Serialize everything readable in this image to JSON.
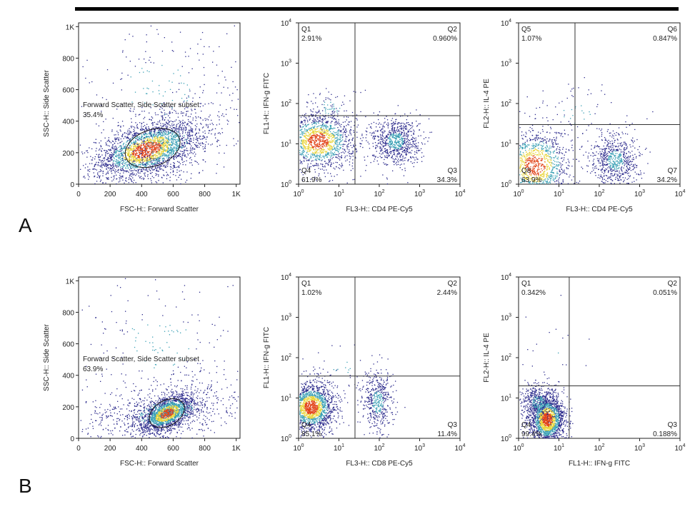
{
  "panel_labels": [
    "A",
    "B"
  ],
  "colors": {
    "dots_low": "#2b2a8c",
    "dots_mid": "#3aa0b5",
    "dots_high": "#e9d43a",
    "dots_peak": "#e2451a",
    "axis": "#222222"
  },
  "chart_data": [
    {
      "id": "A1",
      "type": "scatter",
      "xlabel": "FSC-H:: Forward Scatter",
      "ylabel": "SSC-H:: Side Scatter",
      "xscale": "linear",
      "yscale": "linear",
      "xlim": [
        0,
        1024
      ],
      "ylim": [
        0,
        1024
      ],
      "xticks": [
        {
          "v": 0,
          "t": "0"
        },
        {
          "v": 200,
          "t": "200"
        },
        {
          "v": 400,
          "t": "400"
        },
        {
          "v": 600,
          "t": "600"
        },
        {
          "v": 800,
          "t": "800"
        },
        {
          "v": 1000,
          "t": "1K"
        }
      ],
      "yticks": [
        {
          "v": 0,
          "t": "0"
        },
        {
          "v": 200,
          "t": "200"
        },
        {
          "v": 400,
          "t": "400"
        },
        {
          "v": 600,
          "t": "600"
        },
        {
          "v": 800,
          "t": "800"
        },
        {
          "v": 1000,
          "t": "1K"
        }
      ],
      "gate": {
        "label": "Forward Scatter, Side Scatter subset",
        "percent": "35.4%",
        "center": [
          470,
          230
        ],
        "radius": [
          180,
          115
        ],
        "angle_deg": 20
      },
      "populations": [
        {
          "center": [
            430,
            220
          ],
          "spread": [
            160,
            90
          ],
          "count": 2400,
          "correlation": 0.45
        },
        {
          "center": [
            560,
            260
          ],
          "spread": [
            200,
            130
          ],
          "count": 600,
          "correlation": 0.3
        },
        {
          "center": [
            500,
            600
          ],
          "spread": [
            320,
            250
          ],
          "count": 250,
          "correlation": 0
        }
      ],
      "grid": false
    },
    {
      "id": "A2",
      "type": "scatter",
      "xlabel": "FL3-H:: CD4 PE-Cy5",
      "ylabel": "FL1-H:: IFN-g FITC",
      "xscale": "log",
      "yscale": "log",
      "xlim": [
        1,
        10000
      ],
      "ylim": [
        1,
        10000
      ],
      "xticks": [
        {
          "v": 1,
          "t": "10",
          "e": "0"
        },
        {
          "v": 10,
          "t": "10",
          "e": "1"
        },
        {
          "v": 100,
          "t": "10",
          "e": "2"
        },
        {
          "v": 1000,
          "t": "10",
          "e": "3"
        },
        {
          "v": 10000,
          "t": "10",
          "e": "4"
        }
      ],
      "yticks": [
        {
          "v": 1,
          "t": "10",
          "e": "0"
        },
        {
          "v": 10,
          "t": "10",
          "e": "1"
        },
        {
          "v": 100,
          "t": "10",
          "e": "2"
        },
        {
          "v": 1000,
          "t": "10",
          "e": "3"
        },
        {
          "v": 10000,
          "t": "10",
          "e": "4"
        }
      ],
      "quadrant": {
        "x": 25,
        "y": 50
      },
      "quadrants": [
        {
          "name": "Q1",
          "value": "2.91%",
          "pos": "tl"
        },
        {
          "name": "Q2",
          "value": "0.960%",
          "pos": "tr"
        },
        {
          "name": "Q3",
          "value": "34.3%",
          "pos": "br"
        },
        {
          "name": "Q4",
          "value": "61.9%",
          "pos": "bl"
        }
      ],
      "populations": [
        {
          "center": [
            3,
            12
          ],
          "spread": [
            0.45,
            0.35
          ],
          "count": 1500
        },
        {
          "center": [
            250,
            12
          ],
          "spread": [
            0.3,
            0.3
          ],
          "count": 800
        },
        {
          "center": [
            6,
            80
          ],
          "spread": [
            0.4,
            0.25
          ],
          "count": 80
        }
      ],
      "grid": false
    },
    {
      "id": "A3",
      "type": "scatter",
      "xlabel": "FL3-H:: CD4 PE-Cy5",
      "ylabel": "FL2-H:: IL-4 PE",
      "xscale": "log",
      "yscale": "log",
      "xlim": [
        1,
        10000
      ],
      "ylim": [
        1,
        10000
      ],
      "xticks": [
        {
          "v": 1,
          "t": "10",
          "e": "0"
        },
        {
          "v": 10,
          "t": "10",
          "e": "1"
        },
        {
          "v": 100,
          "t": "10",
          "e": "2"
        },
        {
          "v": 1000,
          "t": "10",
          "e": "3"
        },
        {
          "v": 10000,
          "t": "10",
          "e": "4"
        }
      ],
      "yticks": [
        {
          "v": 1,
          "t": "10",
          "e": "0"
        },
        {
          "v": 10,
          "t": "10",
          "e": "1"
        },
        {
          "v": 100,
          "t": "10",
          "e": "2"
        },
        {
          "v": 1000,
          "t": "10",
          "e": "3"
        },
        {
          "v": 10000,
          "t": "10",
          "e": "4"
        }
      ],
      "quadrant": {
        "x": 25,
        "y": 30
      },
      "quadrants": [
        {
          "name": "Q5",
          "value": "1.07%",
          "pos": "tl"
        },
        {
          "name": "Q6",
          "value": "0.847%",
          "pos": "tr"
        },
        {
          "name": "Q7",
          "value": "34.2%",
          "pos": "br"
        },
        {
          "name": "Q8",
          "value": "63.9%",
          "pos": "bl"
        }
      ],
      "populations": [
        {
          "center": [
            2.5,
            3
          ],
          "spread": [
            0.45,
            0.45
          ],
          "count": 1300
        },
        {
          "center": [
            250,
            4
          ],
          "spread": [
            0.3,
            0.35
          ],
          "count": 700
        },
        {
          "center": [
            30,
            60
          ],
          "spread": [
            0.6,
            0.4
          ],
          "count": 60
        }
      ],
      "grid": false
    },
    {
      "id": "B1",
      "type": "scatter",
      "xlabel": "FSC-H:: Forward Scatter",
      "ylabel": "SSC-H:: Side Scatter",
      "xscale": "linear",
      "yscale": "linear",
      "xlim": [
        0,
        1024
      ],
      "ylim": [
        0,
        1024
      ],
      "xticks": [
        {
          "v": 0,
          "t": "0"
        },
        {
          "v": 200,
          "t": "200"
        },
        {
          "v": 400,
          "t": "400"
        },
        {
          "v": 600,
          "t": "600"
        },
        {
          "v": 800,
          "t": "800"
        },
        {
          "v": 1000,
          "t": "1K"
        }
      ],
      "yticks": [
        {
          "v": 0,
          "t": "0"
        },
        {
          "v": 200,
          "t": "200"
        },
        {
          "v": 400,
          "t": "400"
        },
        {
          "v": 600,
          "t": "600"
        },
        {
          "v": 800,
          "t": "800"
        },
        {
          "v": 1000,
          "t": "1K"
        }
      ],
      "gate": {
        "label": "Forward Scatter, Side Scatter subset",
        "percent": "63.9%",
        "center": [
          560,
          160
        ],
        "radius": [
          120,
          80
        ],
        "angle_deg": 30
      },
      "populations": [
        {
          "center": [
            560,
            160
          ],
          "spread": [
            80,
            55
          ],
          "count": 1800,
          "correlation": 0.5
        },
        {
          "center": [
            550,
            170
          ],
          "spread": [
            260,
            110
          ],
          "count": 900,
          "correlation": 0.4
        },
        {
          "center": [
            500,
            600
          ],
          "spread": [
            320,
            250
          ],
          "count": 200,
          "correlation": 0
        }
      ],
      "grid": false
    },
    {
      "id": "B2",
      "type": "scatter",
      "xlabel": "FL3-H:: CD8 PE-Cy5",
      "ylabel": "FL1-H:: IFN-g FITC",
      "xscale": "log",
      "yscale": "log",
      "xlim": [
        1,
        10000
      ],
      "ylim": [
        1,
        10000
      ],
      "xticks": [
        {
          "v": 1,
          "t": "10",
          "e": "0"
        },
        {
          "v": 10,
          "t": "10",
          "e": "1"
        },
        {
          "v": 100,
          "t": "10",
          "e": "2"
        },
        {
          "v": 1000,
          "t": "10",
          "e": "3"
        },
        {
          "v": 10000,
          "t": "10",
          "e": "4"
        }
      ],
      "yticks": [
        {
          "v": 1,
          "t": "10",
          "e": "0"
        },
        {
          "v": 10,
          "t": "10",
          "e": "1"
        },
        {
          "v": 100,
          "t": "10",
          "e": "2"
        },
        {
          "v": 1000,
          "t": "10",
          "e": "3"
        },
        {
          "v": 10000,
          "t": "10",
          "e": "4"
        }
      ],
      "quadrant": {
        "x": 25,
        "y": 35
      },
      "quadrants": [
        {
          "name": "Q1",
          "value": "1.02%",
          "pos": "tl"
        },
        {
          "name": "Q2",
          "value": "2.44%",
          "pos": "tr"
        },
        {
          "name": "Q3",
          "value": "11.4%",
          "pos": "br"
        },
        {
          "name": "Q4",
          "value": "85.1%",
          "pos": "bl"
        }
      ],
      "populations": [
        {
          "center": [
            2,
            6
          ],
          "spread": [
            0.3,
            0.3
          ],
          "count": 1800
        },
        {
          "center": [
            90,
            8
          ],
          "spread": [
            0.2,
            0.4
          ],
          "count": 500
        },
        {
          "center": [
            10,
            60
          ],
          "spread": [
            0.5,
            0.35
          ],
          "count": 40
        }
      ],
      "grid": false
    },
    {
      "id": "B3",
      "type": "scatter",
      "xlabel": "FL1-H:: IFN-g FITC",
      "ylabel": "FL2-H:: IL-4 PE",
      "xscale": "log",
      "yscale": "log",
      "xlim": [
        1,
        10000
      ],
      "ylim": [
        1,
        10000
      ],
      "xticks": [
        {
          "v": 1,
          "t": "10",
          "e": "0"
        },
        {
          "v": 10,
          "t": "10",
          "e": "1"
        },
        {
          "v": 100,
          "t": "10",
          "e": "2"
        },
        {
          "v": 1000,
          "t": "10",
          "e": "3"
        },
        {
          "v": 10000,
          "t": "10",
          "e": "4"
        }
      ],
      "yticks": [
        {
          "v": 1,
          "t": "10",
          "e": "0"
        },
        {
          "v": 10,
          "t": "10",
          "e": "1"
        },
        {
          "v": 100,
          "t": "10",
          "e": "2"
        },
        {
          "v": 1000,
          "t": "10",
          "e": "3"
        },
        {
          "v": 10000,
          "t": "10",
          "e": "4"
        }
      ],
      "quadrant": {
        "x": 18,
        "y": 20
      },
      "quadrants": [
        {
          "name": "Q1",
          "value": "0.342%",
          "pos": "tl"
        },
        {
          "name": "Q2",
          "value": "0.051%",
          "pos": "tr"
        },
        {
          "name": "Q3",
          "value": "0.188%",
          "pos": "br"
        },
        {
          "name": "Q4",
          "value": "99.4%",
          "pos": "bl"
        }
      ],
      "populations": [
        {
          "center": [
            5,
            3
          ],
          "spread": [
            0.22,
            0.3
          ],
          "count": 1900
        },
        {
          "center": [
            3,
            8
          ],
          "spread": [
            0.25,
            0.25
          ],
          "count": 400
        },
        {
          "center": [
            8,
            150
          ],
          "spread": [
            0.4,
            0.5
          ],
          "count": 20
        }
      ],
      "grid": false
    }
  ]
}
